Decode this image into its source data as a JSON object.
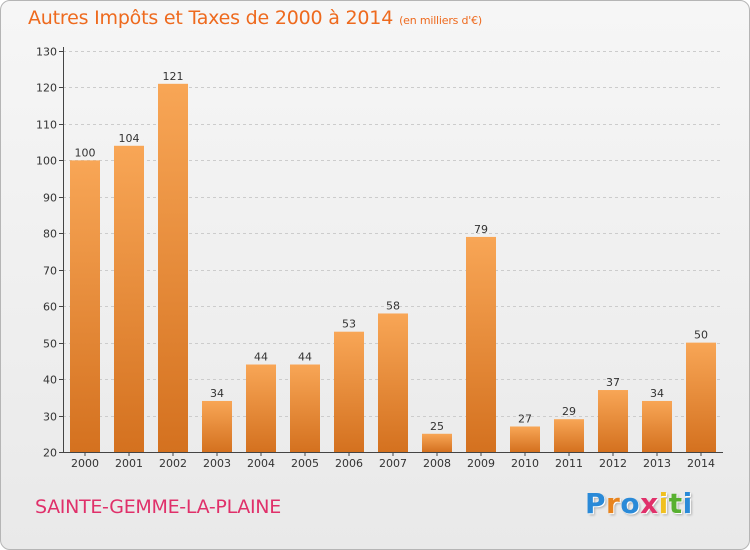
{
  "title": "Autres Impôts et Taxes de 2000 à 2014",
  "subtitle": "(en milliers d'€)",
  "city": "SAINTE-GEMME-LA-PLAINE",
  "logo_letters": [
    "P",
    "r",
    "o",
    "x",
    "i",
    "t",
    "i"
  ],
  "colors": {
    "bar_light": "#f8a656",
    "bar_dark": "#d4711f",
    "title": "#ee6a1e",
    "city": "#e0306a",
    "grid": "#cccccc"
  },
  "chart_data": {
    "type": "bar",
    "categories": [
      "2000",
      "2001",
      "2002",
      "2003",
      "2004",
      "2005",
      "2006",
      "2007",
      "2008",
      "2009",
      "2010",
      "2011",
      "2012",
      "2013",
      "2014"
    ],
    "values": [
      100,
      104,
      121,
      34,
      44,
      44,
      53,
      58,
      25,
      79,
      27,
      29,
      37,
      34,
      50
    ],
    "ylim": [
      20,
      130
    ],
    "yticks": [
      20,
      30,
      40,
      50,
      60,
      70,
      80,
      90,
      100,
      110,
      120,
      130
    ],
    "grid": true,
    "data_labels": true
  }
}
